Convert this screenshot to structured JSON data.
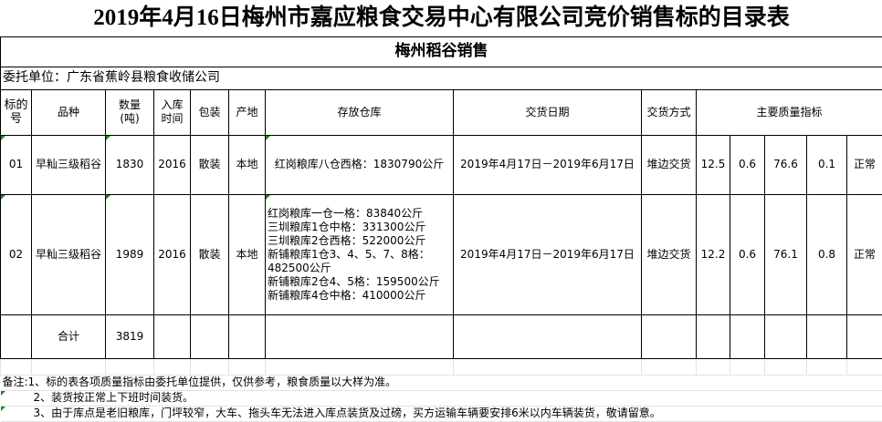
{
  "title": "2019年4月16日梅州市嘉应粮食交易中心有限公司竞价销售标的目录表",
  "subtitle": "梅州稻谷销售",
  "entrust": "委托单位：广东省蕉岭县粮食收储公司",
  "headers": {
    "lot": "标的号",
    "variety": "品种",
    "qty": "数量(吨)",
    "year": "入库时间",
    "pack": "包装",
    "origin": "产地",
    "warehouse": "存放仓库",
    "date": "交货日期",
    "method": "交货方式",
    "quality": "主要质量指标"
  },
  "rows": [
    {
      "lot": "01",
      "variety": "早籼三级稻谷",
      "qty": "1830",
      "year": "2016",
      "pack": "散装",
      "origin": "本地",
      "warehouse": [
        "红岗粮库八仓西格：1830790公斤"
      ],
      "date": "2019年4月17日－2019年6月17日",
      "method": "堆边交货",
      "q": [
        "12.5",
        "0.6",
        "76.6",
        "0.1",
        "正常"
      ]
    },
    {
      "lot": "02",
      "variety": "早籼三级稻谷",
      "qty": "1989",
      "year": "2016",
      "pack": "散装",
      "origin": "本地",
      "warehouse": [
        "红岗粮库一仓一格：83840公斤",
        "三圳粮库1仓中格：331300公斤",
        "三圳粮库2仓西格：522000公斤",
        "新铺粮库1仓3、4、5、7、8格：482500公斤",
        "新铺粮库2仓4、5格：159500公斤",
        "新铺粮库4仓中格：410000公斤"
      ],
      "date": "2019年4月17日－2019年6月17日",
      "method": "堆边交货",
      "q": [
        "12.2",
        "0.6",
        "76.1",
        "0.8",
        "正常"
      ]
    }
  ],
  "total": {
    "label": "合计",
    "qty": "3819"
  },
  "notes": [
    "备注:1、标的表各项质量指标由委托单位提供，仅供参考，粮食质量以大样为准。",
    "2、装货按正常上下班时间装货。",
    "3、由于库点是老旧粮库，门坪较窄，大车、拖头车无法进入库点装货及过磅，买方运输车辆要安排6米以内车辆装货，敬请留意。"
  ]
}
